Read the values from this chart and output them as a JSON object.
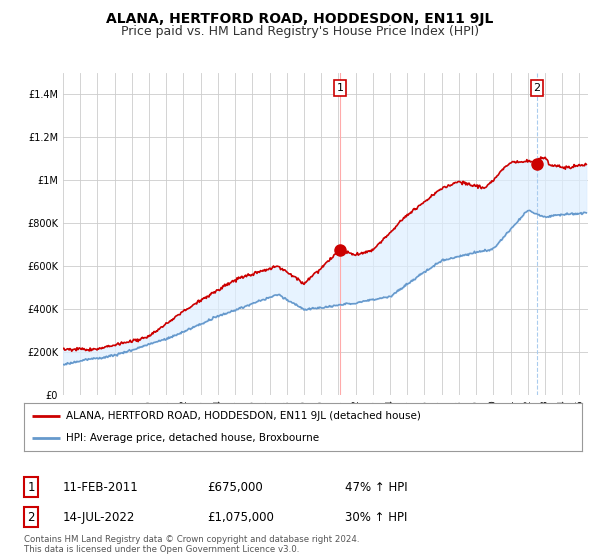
{
  "title": "ALANA, HERTFORD ROAD, HODDESDON, EN11 9JL",
  "subtitle": "Price paid vs. HM Land Registry's House Price Index (HPI)",
  "ylabel_ticks": [
    "£0",
    "£200K",
    "£400K",
    "£600K",
    "£800K",
    "£1M",
    "£1.2M",
    "£1.4M"
  ],
  "ytick_values": [
    0,
    200000,
    400000,
    600000,
    800000,
    1000000,
    1200000,
    1400000
  ],
  "ylim": [
    0,
    1500000
  ],
  "xlim_start": 1995.0,
  "xlim_end": 2025.5,
  "red_color": "#cc0000",
  "blue_color": "#6699cc",
  "fill_color": "#ddeeff",
  "legend_label_red": "ALANA, HERTFORD ROAD, HODDESDON, EN11 9JL (detached house)",
  "legend_label_blue": "HPI: Average price, detached house, Broxbourne",
  "transaction1_date": "11-FEB-2011",
  "transaction1_price": "£675,000",
  "transaction1_hpi": "47% ↑ HPI",
  "transaction2_date": "14-JUL-2022",
  "transaction2_price": "£1,075,000",
  "transaction2_hpi": "30% ↑ HPI",
  "footer": "Contains HM Land Registry data © Crown copyright and database right 2024.\nThis data is licensed under the Open Government Licence v3.0.",
  "background_color": "#ffffff",
  "grid_color": "#cccccc",
  "title_fontsize": 10,
  "subtitle_fontsize": 9,
  "tick_fontsize": 7,
  "transaction1_x": 2011.1,
  "transaction2_x": 2022.54,
  "transaction1_y": 675000,
  "transaction2_y": 1075000
}
